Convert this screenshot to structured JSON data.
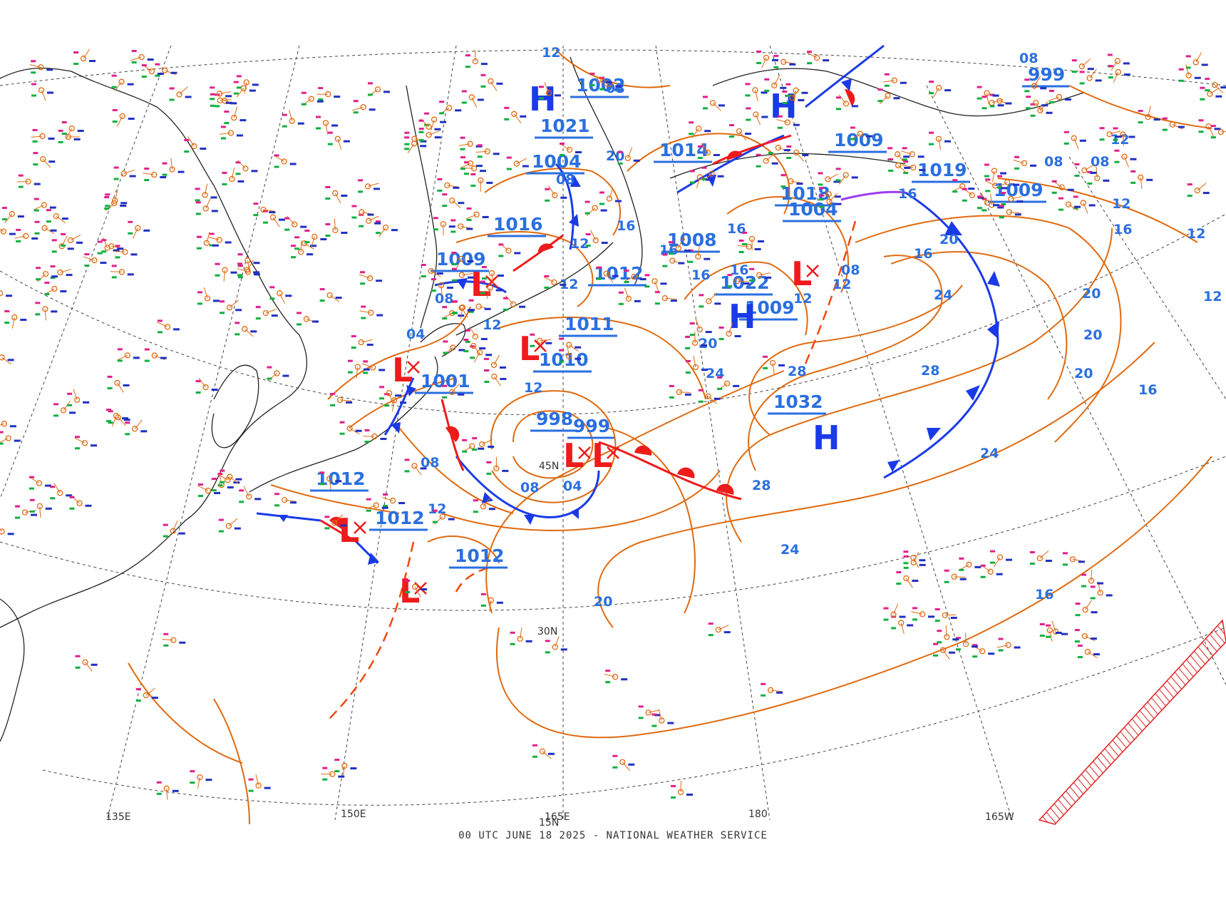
{
  "footer_caption": "00 UTC JUNE 18 2025 - NATIONAL WEATHER SERVICE",
  "colors": {
    "isobar": "#e06a10",
    "label": "#2a6fe0",
    "high": "#1a3ae8",
    "low": "#ee1b1b",
    "cold_front": "#1a3ae8",
    "warm_front": "#ee1b1b",
    "occluded": "#9a3cf0",
    "station_temp": "#e0208a",
    "station_dew": "#10b040",
    "station_tend": "#2030c0",
    "graticule": "#444444",
    "coast": "#222222",
    "hatch": "#e02020"
  },
  "graticule_labels": {
    "lat_45": "45N",
    "lat_30": "30N",
    "lat_15": "15N",
    "lon_135e": "135E",
    "lon_150e": "150E",
    "lon_165e": "165E",
    "lon_180": "180",
    "lon_165w": "165W"
  },
  "pressure_centers": [
    {
      "type": "high",
      "symbol": "H",
      "value": "1021"
    },
    {
      "type": "high",
      "symbol": "H",
      "value": "1022"
    },
    {
      "type": "high",
      "symbol": "H",
      "value": "1032"
    },
    {
      "type": "high",
      "symbol": "H",
      "value": "1019"
    },
    {
      "type": "low",
      "symbol": "L",
      "value": "1004"
    },
    {
      "type": "low",
      "symbol": "L",
      "value": "1009"
    },
    {
      "type": "low",
      "symbol": "L",
      "value": "1001"
    },
    {
      "type": "low",
      "symbol": "L",
      "value": "1010"
    },
    {
      "type": "low",
      "symbol": "L",
      "value": "998"
    },
    {
      "type": "low",
      "symbol": "L",
      "value": "999"
    },
    {
      "type": "low",
      "symbol": "L",
      "value": "1012"
    },
    {
      "type": "low",
      "symbol": "L",
      "value": "1004"
    }
  ],
  "center_labels": [
    {
      "value": "1002"
    },
    {
      "value": "1021"
    },
    {
      "value": "1004"
    },
    {
      "value": "1016"
    },
    {
      "value": "1009"
    },
    {
      "value": "1012"
    },
    {
      "value": "1011"
    },
    {
      "value": "1010"
    },
    {
      "value": "1001"
    },
    {
      "value": "998"
    },
    {
      "value": "999"
    },
    {
      "value": "1012"
    },
    {
      "value": "1012"
    },
    {
      "value": "1012"
    },
    {
      "value": "1008"
    },
    {
      "value": "1022"
    },
    {
      "value": "1009"
    },
    {
      "value": "1004"
    },
    {
      "value": "1032"
    },
    {
      "value": "1018"
    },
    {
      "value": "1019"
    },
    {
      "value": "1009"
    },
    {
      "value": "1014"
    },
    {
      "value": "1009"
    },
    {
      "value": "999"
    }
  ],
  "isobar_labels": [
    "12",
    "08",
    "20",
    "08",
    "12",
    "12",
    "08",
    "04",
    "12",
    "12",
    "08",
    "08",
    "04",
    "12",
    "16",
    "16",
    "16",
    "20",
    "24",
    "28",
    "28",
    "24",
    "20",
    "16",
    "12",
    "12",
    "16",
    "20",
    "20",
    "20",
    "24",
    "28",
    "24",
    "20",
    "12",
    "16",
    "16",
    "16",
    "12",
    "08",
    "16",
    "12",
    "08",
    "08",
    "08",
    "12",
    "16"
  ]
}
